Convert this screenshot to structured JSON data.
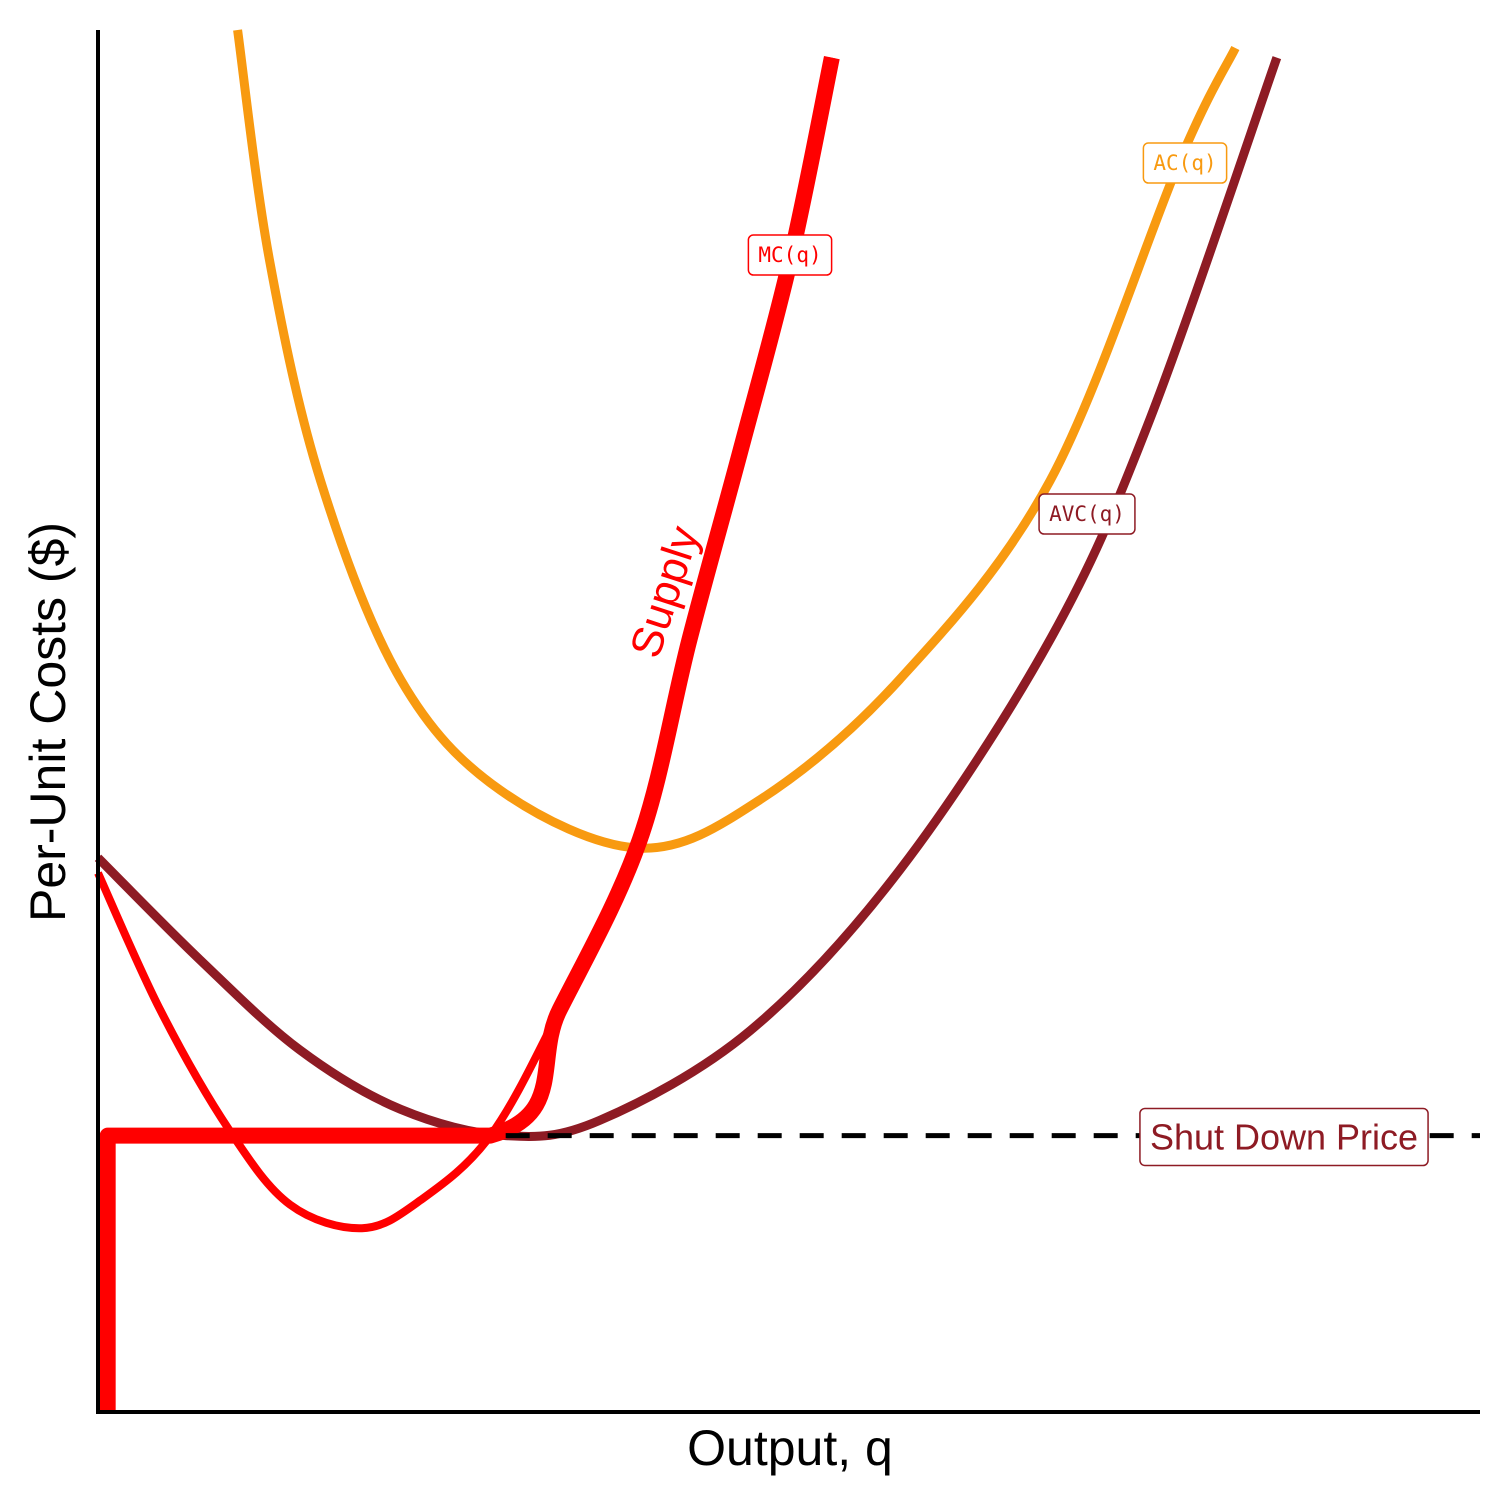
{
  "chart_data": {
    "type": "line",
    "x_label": "Output, q",
    "y_label": "Per-Unit Costs ($)",
    "xlim": [
      0,
      10
    ],
    "ylim": [
      0,
      10
    ],
    "series": [
      {
        "name": "AC(q)",
        "color": "#f89a10",
        "x": [
          1.01,
          1.24,
          1.61,
          2.19,
          2.91,
          3.92,
          4.79,
          5.8,
          6.89,
          7.83,
          8.23
        ],
        "values": [
          10.0,
          8.34,
          6.74,
          5.3,
          4.5,
          4.08,
          4.43,
          5.3,
          6.74,
          9.06,
          9.87
        ]
      },
      {
        "name": "AVC(q)",
        "color": "#8e1b24",
        "x": [
          0,
          0.74,
          1.46,
          2.19,
          2.95,
          3.63,
          4.72,
          5.8,
          6.89,
          7.61,
          8.53
        ],
        "values": [
          4.01,
          3.27,
          2.62,
          2.19,
          2.0,
          2.11,
          2.76,
          3.92,
          5.59,
          7.18,
          9.8
        ]
      },
      {
        "name": "MC(q)",
        "color": "#ff0000",
        "x": [
          0,
          0.45,
          0.95,
          1.39,
          1.91,
          2.33,
          2.84,
          3.34,
          3.92,
          4.28,
          4.65,
          5.01,
          5.31
        ],
        "values": [
          3.9,
          2.91,
          2.04,
          1.5,
          1.33,
          1.53,
          2.0,
          2.91,
          4.14,
          5.59,
          6.96,
          8.34,
          9.8
        ]
      },
      {
        "name": "Supply",
        "color": "#ff0000",
        "x": [
          0.07,
          0.07,
          2.84,
          3.34,
          3.92,
          4.28,
          4.65,
          5.01,
          5.31
        ],
        "values": [
          0,
          2.0,
          2.0,
          2.91,
          4.14,
          5.59,
          6.96,
          8.34,
          9.8
        ]
      },
      {
        "name": "Shut Down Price",
        "color": "#000000",
        "x": [
          2.95,
          10
        ],
        "values": [
          2.0,
          2.0
        ]
      }
    ]
  }
}
